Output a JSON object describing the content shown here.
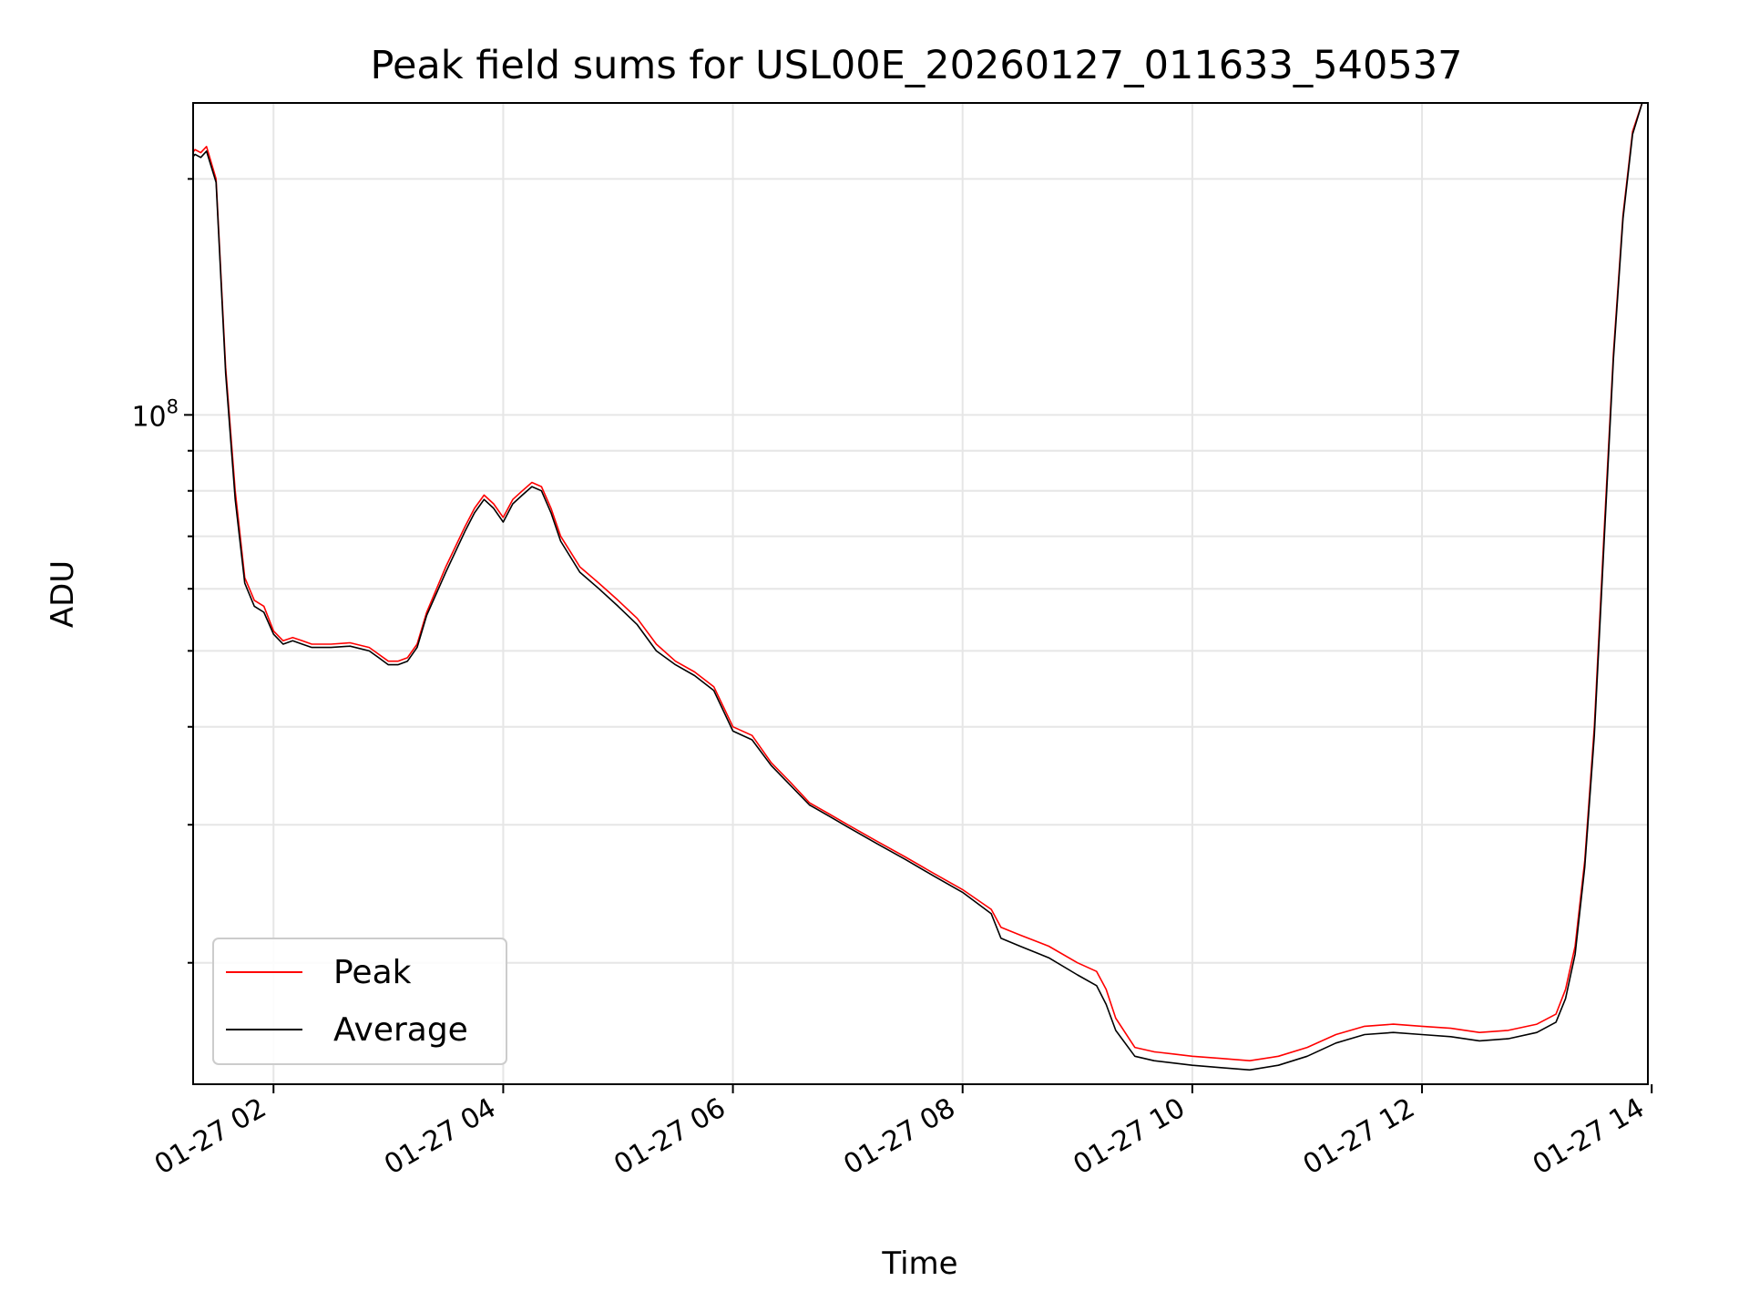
{
  "chart_data": {
    "type": "line",
    "title": "Peak field sums for USL00E_20260127_011633_540537",
    "xlabel": "Time",
    "ylabel": "ADU",
    "y_scale": "log",
    "xlim": [
      "2026-01-27 01:18",
      "2026-01-27 13:58"
    ],
    "ylim": [
      14000000,
      250000000
    ],
    "x_ticks": [
      "01-27 02",
      "01-27 04",
      "01-27 06",
      "01-27 08",
      "01-27 10",
      "01-27 12",
      "01-27 14"
    ],
    "x_tick_values": [
      "2026-01-27 02:00",
      "2026-01-27 04:00",
      "2026-01-27 06:00",
      "2026-01-27 08:00",
      "2026-01-27 10:00",
      "2026-01-27 12:00",
      "2026-01-27 14:00"
    ],
    "y_major_tick": {
      "value": 100000000,
      "base": "10",
      "exponent": "8"
    },
    "grid": true,
    "legend_position": "lower-left",
    "x": [
      "01:17",
      "01:19",
      "01:22",
      "01:25",
      "01:30",
      "01:35",
      "01:40",
      "01:45",
      "01:50",
      "01:55",
      "02:00",
      "02:05",
      "02:10",
      "02:15",
      "02:20",
      "02:30",
      "02:40",
      "02:50",
      "02:55",
      "03:00",
      "03:05",
      "03:10",
      "03:15",
      "03:20",
      "03:30",
      "03:40",
      "03:45",
      "03:50",
      "03:55",
      "04:00",
      "04:05",
      "04:10",
      "04:15",
      "04:20",
      "04:25",
      "04:30",
      "04:40",
      "04:50",
      "05:00",
      "05:10",
      "05:20",
      "05:30",
      "05:40",
      "05:50",
      "06:00",
      "06:10",
      "06:20",
      "06:30",
      "06:40",
      "06:50",
      "07:00",
      "07:15",
      "07:30",
      "07:45",
      "08:00",
      "08:15",
      "08:20",
      "08:30",
      "08:45",
      "09:00",
      "09:10",
      "09:15",
      "09:20",
      "09:30",
      "09:40",
      "09:50",
      "10:00",
      "10:15",
      "10:30",
      "10:45",
      "11:00",
      "11:15",
      "11:30",
      "11:45",
      "12:00",
      "12:15",
      "12:30",
      "12:45",
      "13:00",
      "13:10",
      "13:15",
      "13:20",
      "13:25",
      "13:30",
      "13:35",
      "13:40",
      "13:45",
      "13:50",
      "13:55"
    ],
    "series": [
      {
        "name": "Peak",
        "color": "#ff0000",
        "values": [
          215000000,
          218000000,
          216000000,
          220000000,
          200000000,
          115000000,
          80000000,
          62000000,
          58000000,
          57000000,
          53000000,
          51500000,
          52000000,
          51500000,
          51000000,
          51000000,
          51200000,
          50500000,
          49500000,
          48500000,
          48500000,
          49000000,
          51000000,
          56000000,
          64000000,
          72000000,
          76000000,
          79000000,
          77000000,
          74000000,
          78000000,
          80000000,
          82000000,
          81000000,
          76000000,
          70000000,
          64000000,
          61000000,
          58000000,
          55000000,
          51000000,
          48500000,
          47000000,
          45000000,
          40000000,
          39000000,
          36000000,
          34000000,
          32000000,
          31000000,
          30000000,
          28600000,
          27300000,
          26000000,
          24800000,
          23400000,
          22200000,
          21700000,
          21000000,
          20000000,
          19500000,
          18500000,
          17000000,
          15600000,
          15400000,
          15300000,
          15200000,
          15100000,
          15000000,
          15200000,
          15600000,
          16200000,
          16600000,
          16700000,
          16600000,
          16500000,
          16300000,
          16400000,
          16700000,
          17200000,
          18500000,
          21000000,
          27000000,
          40000000,
          70000000,
          120000000,
          180000000,
          230000000,
          250000000
        ]
      },
      {
        "name": "Average",
        "color": "#000000",
        "values": [
          212000000,
          215000000,
          213000000,
          217000000,
          198000000,
          113000000,
          78000000,
          61000000,
          57000000,
          56000000,
          52500000,
          51000000,
          51500000,
          51000000,
          50500000,
          50500000,
          50700000,
          50000000,
          49000000,
          48000000,
          48000000,
          48500000,
          50500000,
          55500000,
          63000000,
          71000000,
          75000000,
          78000000,
          76000000,
          73000000,
          77000000,
          79000000,
          81000000,
          80000000,
          75000000,
          69000000,
          63000000,
          60000000,
          57000000,
          54000000,
          50000000,
          48000000,
          46500000,
          44500000,
          39500000,
          38500000,
          35700000,
          33700000,
          31800000,
          30800000,
          29800000,
          28400000,
          27100000,
          25800000,
          24600000,
          23100000,
          21500000,
          21000000,
          20300000,
          19300000,
          18700000,
          17700000,
          16400000,
          15200000,
          15000000,
          14900000,
          14800000,
          14700000,
          14600000,
          14800000,
          15200000,
          15800000,
          16200000,
          16300000,
          16200000,
          16100000,
          15900000,
          16000000,
          16300000,
          16800000,
          18000000,
          20500000,
          26500000,
          39000000,
          68000000,
          118000000,
          178000000,
          228000000,
          250000000
        ]
      }
    ]
  }
}
